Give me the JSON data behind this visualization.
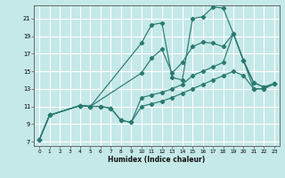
{
  "xlabel": "Humidex (Indice chaleur)",
  "bg_color": "#c5e8e8",
  "grid_color": "#ffffff",
  "line_color": "#2a7a70",
  "xlim": [
    -0.5,
    23.5
  ],
  "ylim": [
    6.5,
    22.5
  ],
  "xticks": [
    0,
    1,
    2,
    3,
    4,
    5,
    6,
    7,
    8,
    9,
    10,
    11,
    12,
    13,
    14,
    15,
    16,
    17,
    18,
    19,
    20,
    21,
    22,
    23
  ],
  "yticks": [
    7,
    9,
    11,
    13,
    15,
    17,
    19,
    21
  ],
  "lines": [
    {
      "x": [
        0,
        1,
        4,
        5,
        10,
        11,
        12,
        13,
        14,
        15,
        16,
        17,
        18,
        19,
        20,
        21,
        22,
        23
      ],
      "y": [
        7.2,
        10.0,
        11.1,
        11.0,
        18.2,
        20.3,
        20.5,
        14.3,
        14.0,
        21.0,
        21.2,
        22.3,
        22.2,
        19.3,
        16.2,
        13.7,
        13.2,
        13.6
      ]
    },
    {
      "x": [
        0,
        1,
        4,
        5,
        10,
        11,
        12,
        13,
        14,
        15,
        16,
        17,
        18,
        19,
        20,
        21,
        22,
        23
      ],
      "y": [
        7.2,
        10.0,
        11.1,
        11.0,
        14.8,
        16.5,
        17.5,
        14.8,
        16.0,
        17.8,
        18.3,
        18.2,
        17.8,
        19.3,
        16.2,
        13.7,
        13.2,
        13.6
      ]
    },
    {
      "x": [
        0,
        1,
        4,
        5,
        6,
        7,
        8,
        9,
        10,
        11,
        12,
        13,
        14,
        15,
        16,
        17,
        18,
        19,
        20,
        21,
        22,
        23
      ],
      "y": [
        7.2,
        10.0,
        11.1,
        11.0,
        11.0,
        10.8,
        9.4,
        9.2,
        12.0,
        12.3,
        12.6,
        13.0,
        13.5,
        14.5,
        15.0,
        15.5,
        16.0,
        19.3,
        16.2,
        13.0,
        13.0,
        13.6
      ]
    },
    {
      "x": [
        0,
        1,
        4,
        5,
        6,
        7,
        8,
        9,
        10,
        11,
        12,
        13,
        14,
        15,
        16,
        17,
        18,
        19,
        20,
        21,
        22,
        23
      ],
      "y": [
        7.2,
        10.0,
        11.1,
        11.0,
        11.0,
        10.8,
        9.4,
        9.2,
        11.0,
        11.3,
        11.6,
        12.0,
        12.5,
        13.0,
        13.5,
        14.0,
        14.5,
        15.0,
        14.5,
        13.0,
        13.0,
        13.6
      ]
    }
  ]
}
